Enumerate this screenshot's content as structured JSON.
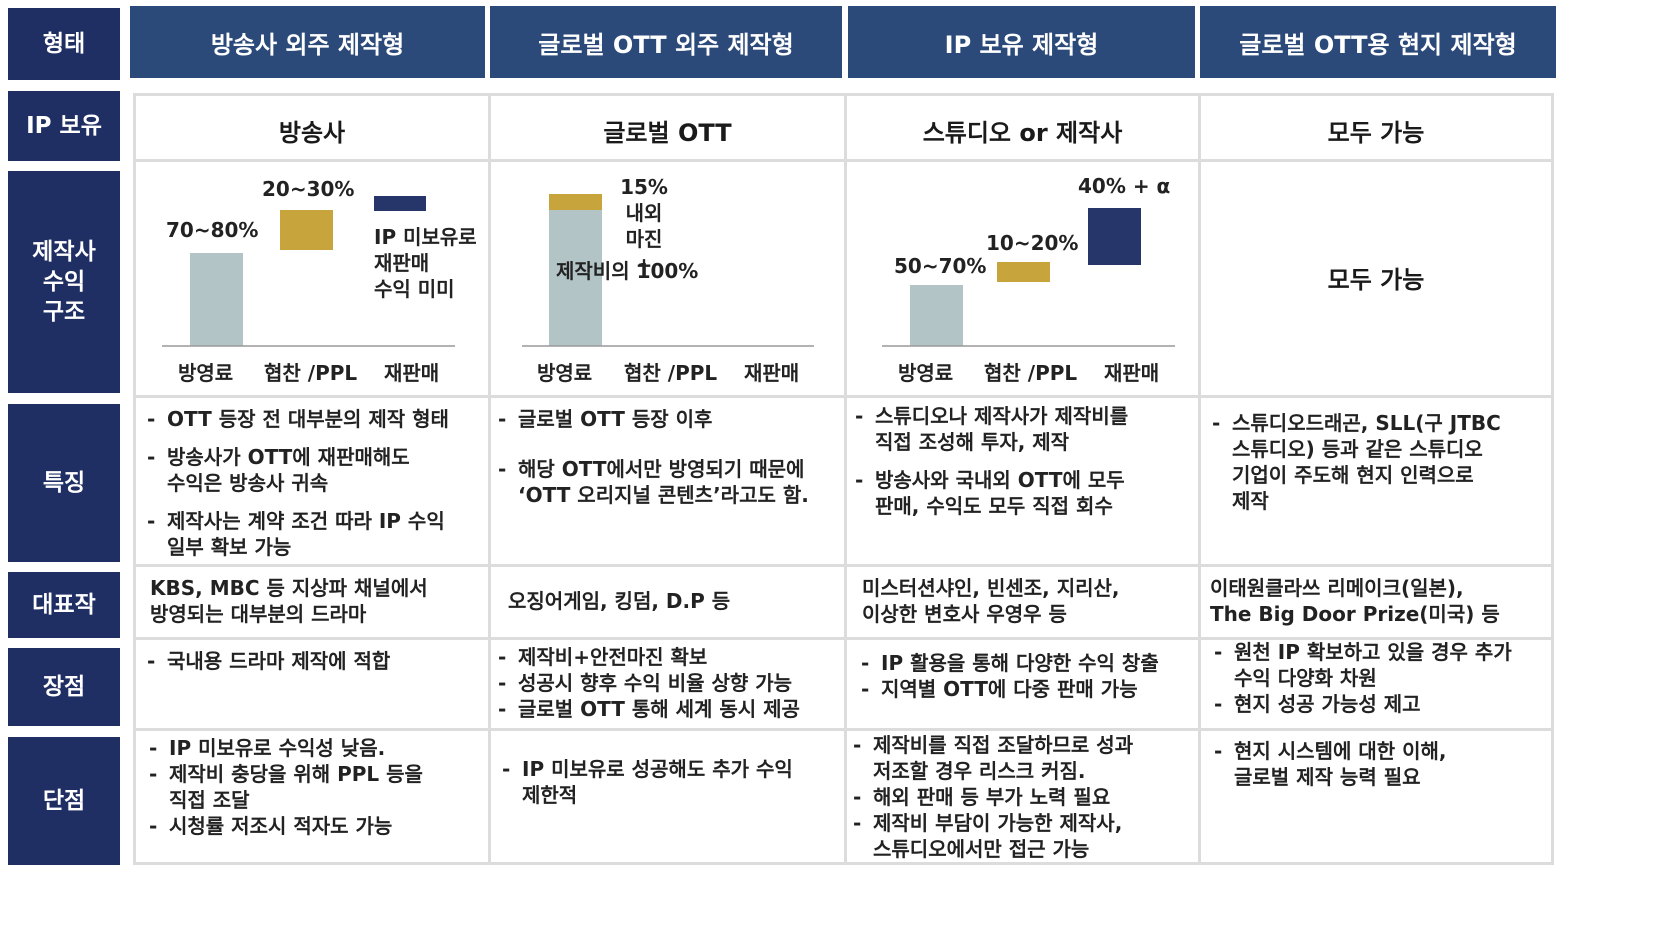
{
  "row_headers": {
    "form": "형태",
    "ip": "IP 보유",
    "revenue": "제작사\n수익\n구조",
    "features": "특징",
    "works": "대표작",
    "pros": "장점",
    "cons": "단점"
  },
  "columns": [
    {
      "header": "방송사 외주 제작형",
      "ip_owner": "방송사",
      "chart_data": {
        "type": "bar",
        "categories": [
          "방영료",
          "협찬 /PPL",
          "재판매"
        ],
        "labels": [
          "70~80%",
          "20~30%",
          ""
        ],
        "note": "IP 미보유로\n재판매\n수익 미미",
        "colors": [
          "#b3c4c6",
          "#c8a43c",
          "#26356a"
        ]
      },
      "features": [
        "OTT 등장 전 대부분의 제작 형태",
        "방송사가 OTT에 재판매해도\n수익은 방송사 귀속",
        "제작사는 계약 조건 따라 IP 수익\n일부 확보 가능"
      ],
      "works": "KBS, MBC 등 지상파 채널에서\n방영되는 대부분의 드라마",
      "pros": [
        "국내용 드라마 제작에 적합"
      ],
      "cons": [
        "IP 미보유로 수익성 낮음.",
        "제작비 충당을 위해 PPL 등을\n직접 조달",
        "시청률 저조시 적자도 가능"
      ]
    },
    {
      "header": "글로벌 OTT 외주 제작형",
      "ip_owner": "글로벌 OTT",
      "chart_data": {
        "type": "bar",
        "categories": [
          "방영료",
          "협찬 /PPL",
          "재판매"
        ],
        "labels": [
          "15%내외\n마진\n+",
          "제작비의 100%"
        ],
        "colors": [
          "#b3c4c6",
          "#c8a43c"
        ]
      },
      "features": [
        "글로벌 OTT 등장 이후",
        "해당 OTT에서만 방영되기 때문에\n‘OTT 오리지널 콘텐츠’라고도 함."
      ],
      "works": "오징어게임, 킹덤, D.P 등",
      "pros": [
        "제작비+안전마진 확보",
        "성공시 향후 수익 비율 상향 가능",
        "글로벌 OTT 통해 세계 동시 제공"
      ],
      "cons": [
        "IP 미보유로 성공해도 추가 수익\n제한적"
      ]
    },
    {
      "header": "IP 보유 제작형",
      "ip_owner": "스튜디오 or 제작사",
      "chart_data": {
        "type": "bar",
        "categories": [
          "방영료",
          "협찬 /PPL",
          "재판매"
        ],
        "labels": [
          "50~70%",
          "10~20%",
          "40% + α"
        ],
        "colors": [
          "#b3c4c6",
          "#c8a43c",
          "#26356a"
        ]
      },
      "features": [
        "스튜디오나 제작사가 제작비를\n직접 조성해 투자, 제작",
        "방송사와 국내외 OTT에 모두\n판매, 수익도 모두 직접 회수"
      ],
      "works": "미스터션샤인, 빈센조, 지리산,\n이상한 변호사 우영우 등",
      "pros": [
        "IP 활용을 통해 다양한 수익 창출",
        "지역별 OTT에 다중 판매 가능"
      ],
      "cons": [
        "제작비를 직접 조달하므로 성과\n저조할 경우 리스크 커짐.",
        "해외 판매 등 부가 노력 필요",
        "제작비 부담이 가능한 제작사,\n스튜디오에서만 접근 가능"
      ]
    },
    {
      "header": "글로벌 OTT용 현지 제작형",
      "ip_owner": "모두 가능",
      "revenue_text": "모두 가능",
      "features": [
        "스튜디오드래곤, SLL(구 JTBC\n스튜디오) 등과 같은 스튜디오\n기업이 주도해 현지 인력으로\n제작"
      ],
      "works": "이태원클라쓰 리메이크(일본),\nThe Big Door Prize(미국) 등",
      "pros": [
        "원천 IP 확보하고 있을 경우 추가\n수익 다양화 차원",
        "현지 성공 가능성 제고"
      ],
      "cons": [
        "현지 시스템에 대한 이해,\n글로벌 제작 능력 필요"
      ]
    }
  ]
}
